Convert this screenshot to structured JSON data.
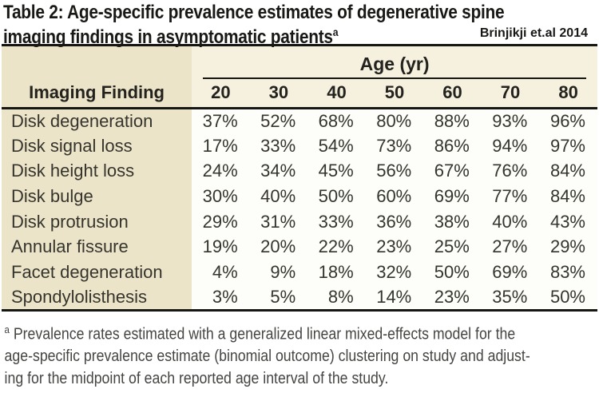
{
  "title": {
    "line1": "Table 2: Age-specific prevalence estimates of degenerative spine",
    "line2": "imaging findings in asymptomatic patients",
    "superscript": "a",
    "attribution": "Brinjikji et.al 2014"
  },
  "table": {
    "col_header_label": "Imaging Finding",
    "age_group_label": "Age (yr)",
    "age_columns": [
      "20",
      "30",
      "40",
      "50",
      "60",
      "70",
      "80"
    ],
    "rows": [
      {
        "label": "Disk degeneration",
        "values": [
          "37%",
          "52%",
          "68%",
          "80%",
          "88%",
          "93%",
          "96%"
        ]
      },
      {
        "label": "Disk signal loss",
        "values": [
          "17%",
          "33%",
          "54%",
          "73%",
          "86%",
          "94%",
          "97%"
        ]
      },
      {
        "label": "Disk height loss",
        "values": [
          "24%",
          "34%",
          "45%",
          "56%",
          "67%",
          "76%",
          "84%"
        ]
      },
      {
        "label": "Disk bulge",
        "values": [
          "30%",
          "40%",
          "50%",
          "60%",
          "69%",
          "77%",
          "84%"
        ]
      },
      {
        "label": "Disk protrusion",
        "values": [
          "29%",
          "31%",
          "33%",
          "36%",
          "38%",
          "40%",
          "43%"
        ]
      },
      {
        "label": "Annular fissure",
        "values": [
          "19%",
          "20%",
          "22%",
          "23%",
          "25%",
          "27%",
          "29%"
        ]
      },
      {
        "label": "Facet degeneration",
        "values": [
          "4%",
          "9%",
          "18%",
          "32%",
          "50%",
          "69%",
          "83%"
        ]
      },
      {
        "label": "Spondylolisthesis",
        "values": [
          "3%",
          "5%",
          "8%",
          "14%",
          "23%",
          "35%",
          "50%"
        ]
      }
    ]
  },
  "footnote": {
    "superscript": "a",
    "lines": [
      "Prevalence rates estimated with a generalized linear mixed-effects model for the",
      "age-specific prevalence estimate (binomial outcome) clustering on study and adjust-",
      "ing for the midpoint of each reported age interval of the study."
    ]
  },
  "colors": {
    "label_column_bg": "#ece4c8",
    "header_band_bg": "#f5f1de",
    "data_cell_bg": "#fdfdf9",
    "rule": "#161613",
    "footnote_text": "#454542"
  }
}
